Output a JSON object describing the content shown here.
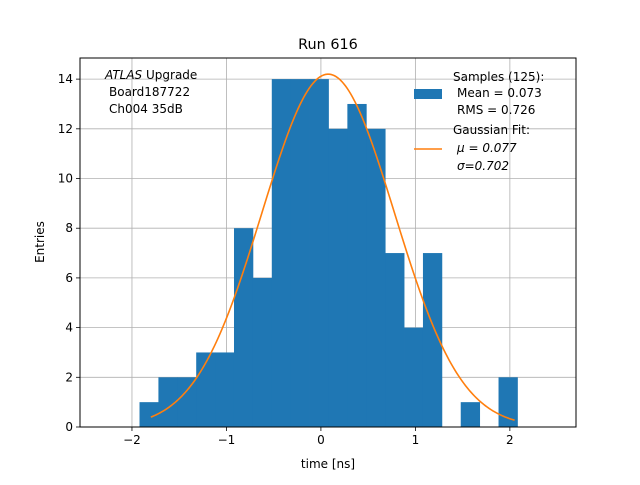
{
  "chart_data": {
    "type": "bar",
    "title": "Run 616",
    "xlabel": "time [ns]",
    "ylabel": "Entries",
    "xlim": [
      -2.55,
      2.7
    ],
    "ylim": [
      0,
      14.85
    ],
    "xticks": [
      -2,
      -1,
      0,
      1,
      2
    ],
    "yticks": [
      0,
      2,
      4,
      6,
      8,
      10,
      12,
      14
    ],
    "xtick_labels": [
      "−2",
      "−1",
      "0",
      "1",
      "2"
    ],
    "ytick_labels": [
      "0",
      "2",
      "4",
      "6",
      "8",
      "10",
      "12",
      "14"
    ],
    "grid": true,
    "annotation": {
      "lines": [
        {
          "italic": "ATLAS",
          "text": " Upgrade"
        },
        {
          "italic": "",
          "text": "Board187722"
        },
        {
          "italic": "",
          "text": "Ch004 35dB"
        }
      ],
      "placement": "top-left"
    },
    "legend": {
      "placement": "top-right",
      "entries": [
        {
          "kind": "patch",
          "lines": [
            "Samples (125):",
            "Mean = 0.073",
            "RMS = 0.726"
          ]
        },
        {
          "kind": "line",
          "lines": [
            "Gaussian Fit:",
            "μ = 0.077",
            "σ=0.702"
          ]
        }
      ]
    },
    "histogram": {
      "bin_edges": [
        -1.92,
        -1.72,
        -1.52,
        -1.32,
        -1.12,
        -0.92,
        -0.72,
        -0.52,
        -0.32,
        -0.12,
        0.08,
        0.28,
        0.48,
        0.68,
        0.88,
        1.08,
        1.28,
        1.48,
        1.68,
        1.88,
        2.08
      ],
      "counts": [
        1,
        2,
        2,
        3,
        3,
        8,
        6,
        14,
        14,
        14,
        12,
        13,
        12,
        7,
        4,
        7,
        0,
        1,
        0,
        2
      ],
      "color": "#1f77b4"
    },
    "fit": {
      "name": "Gaussian Fit",
      "amplitude": 14.2,
      "mu": 0.077,
      "sigma": 0.702,
      "x_range": [
        -1.8,
        2.05
      ],
      "color": "#ff7f0e"
    }
  }
}
